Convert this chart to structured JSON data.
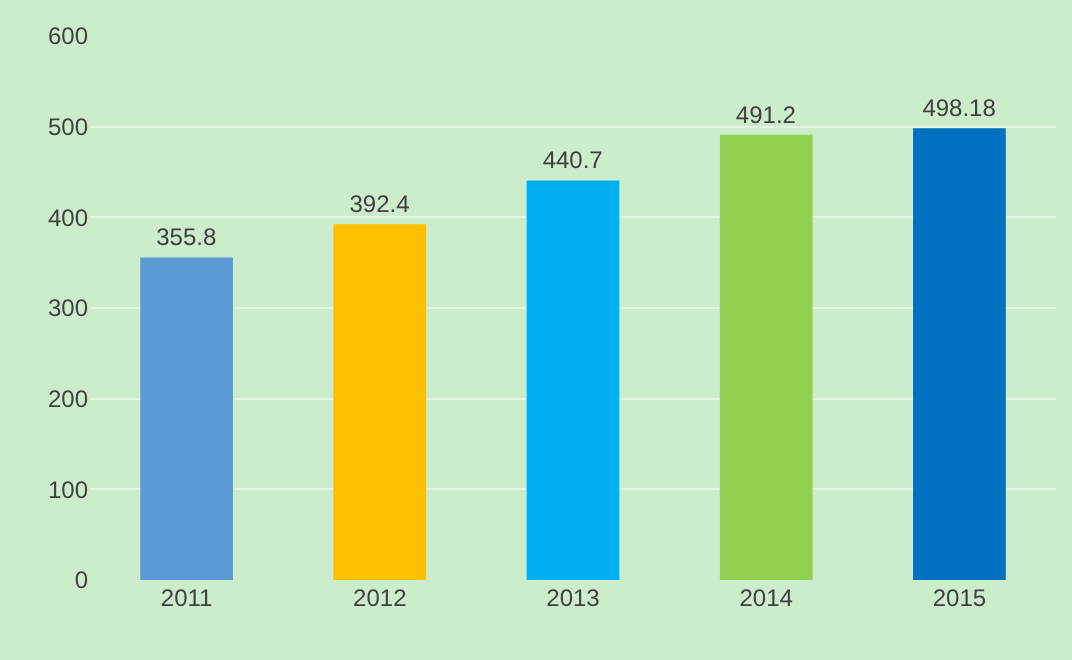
{
  "chart_data": {
    "type": "bar",
    "categories": [
      "2011",
      "2012",
      "2013",
      "2014",
      "2015"
    ],
    "values": [
      355.8,
      392.4,
      440.7,
      491.2,
      498.18
    ],
    "colors": [
      "#5b9bd5",
      "#ffc000",
      "#00b0f0",
      "#92d050",
      "#0070c0"
    ],
    "ylim": [
      0,
      600
    ],
    "yticks": [
      0,
      100,
      200,
      300,
      400,
      500,
      600
    ],
    "grid": "y",
    "data_labels": true
  }
}
